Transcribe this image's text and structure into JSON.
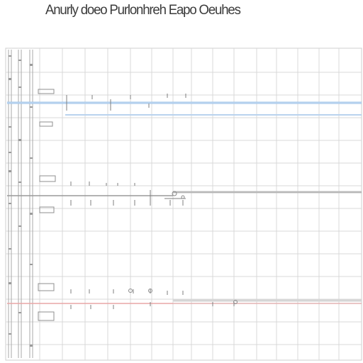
{
  "header": {
    "title": "Anurly doeo Purlonhreh Eapo Oeuhes"
  },
  "colors": {
    "grid": "#d7d7d7",
    "grid_strong": "#bdbdbd",
    "line_blue": "#9fc3e8",
    "line_gray": "#bdbdbd",
    "line_red": "#e8a6a6",
    "ink": "#707070"
  }
}
